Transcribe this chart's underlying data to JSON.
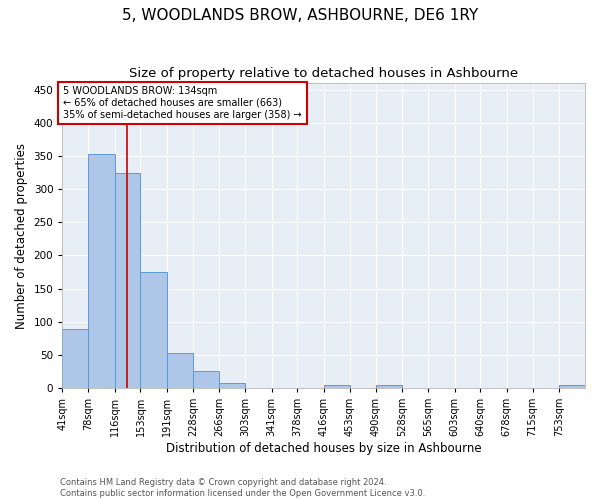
{
  "title": "5, WOODLANDS BROW, ASHBOURNE, DE6 1RY",
  "subtitle": "Size of property relative to detached houses in Ashbourne",
  "xlabel": "Distribution of detached houses by size in Ashbourne",
  "ylabel": "Number of detached properties",
  "bar_edges": [
    41,
    78,
    116,
    153,
    191,
    228,
    266,
    303,
    341,
    378,
    416,
    453,
    490,
    528,
    565,
    603,
    640,
    678,
    715,
    753,
    790
  ],
  "bar_heights": [
    89,
    353,
    324,
    175,
    53,
    25,
    8,
    0,
    0,
    0,
    4,
    0,
    5,
    0,
    0,
    0,
    0,
    0,
    0,
    5
  ],
  "bar_color": "#aec6e8",
  "bar_edge_color": "#5b9bd5",
  "property_size": 134,
  "vline_color": "#cc0000",
  "annotation_text": "5 WOODLANDS BROW: 134sqm\n← 65% of detached houses are smaller (663)\n35% of semi-detached houses are larger (358) →",
  "annotation_box_color": "#cc0000",
  "ylim": [
    0,
    460
  ],
  "yticks": [
    0,
    50,
    100,
    150,
    200,
    250,
    300,
    350,
    400,
    450
  ],
  "footer_line1": "Contains HM Land Registry data © Crown copyright and database right 2024.",
  "footer_line2": "Contains public sector information licensed under the Open Government Licence v3.0.",
  "background_color": "#e8eef5",
  "grid_color": "#ffffff",
  "title_fontsize": 11,
  "subtitle_fontsize": 9.5,
  "xlabel_fontsize": 8.5,
  "ylabel_fontsize": 8.5,
  "tick_fontsize": 7,
  "footer_fontsize": 6
}
